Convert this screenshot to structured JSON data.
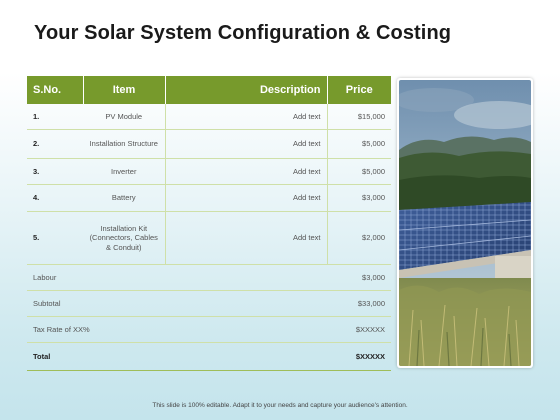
{
  "slide": {
    "title": "Your Solar System Configuration & Costing",
    "footer": "This slide is 100% editable. Adapt it to your needs and capture your audience's attention."
  },
  "table": {
    "headers": {
      "sno": "S.No.",
      "item": "Item",
      "description": "Description",
      "price": "Price"
    },
    "rows": [
      {
        "no": "1.",
        "item": "PV Module",
        "description": "Add text",
        "price": "$15,000"
      },
      {
        "no": "2.",
        "item": "Installation Structure",
        "description": "Add text",
        "price": "$5,000"
      },
      {
        "no": "3.",
        "item": "Inverter",
        "description": "Add text",
        "price": "$5,000"
      },
      {
        "no": "4.",
        "item": "Battery",
        "description": "Add text",
        "price": "$3,000"
      },
      {
        "no": "5.",
        "item": "Installation Kit (Connectors, Cables & Conduit)",
        "description": "Add text",
        "price": "$2,000"
      }
    ],
    "summary": [
      {
        "label": "Labour",
        "value": "$3,000"
      },
      {
        "label": "Subtotal",
        "value": "$33,000"
      },
      {
        "label": "Tax Rate of XX%",
        "value": "$XXXXX"
      }
    ],
    "total": {
      "label": "Total",
      "value": "$XXXXX"
    }
  },
  "colors": {
    "header_green": "#779a2c",
    "line_green": "#cfe0a8",
    "background_blue": "#c4e4ec"
  },
  "image": {
    "subject": "solar-panels-field-photo"
  }
}
